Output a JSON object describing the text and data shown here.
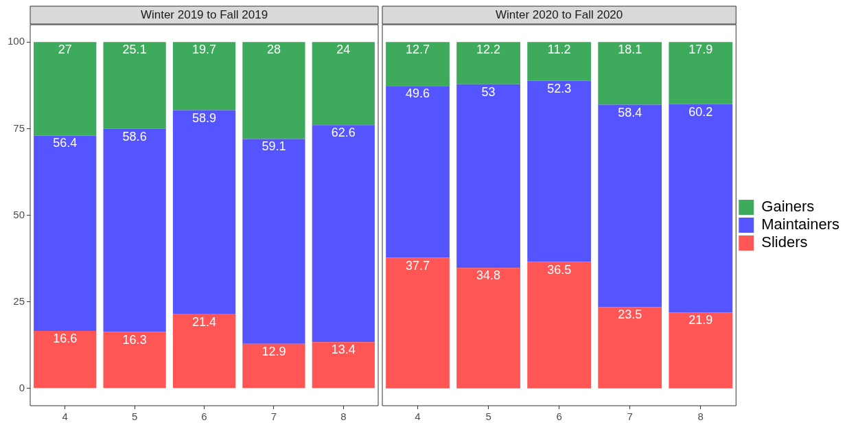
{
  "chart_data": [
    {
      "type": "bar",
      "title": "Winter 2019 to Fall 2019",
      "stacked": true,
      "categories": [
        "4",
        "5",
        "6",
        "7",
        "8"
      ],
      "series": [
        {
          "color": "#ff5555",
          "values": [
            16.6,
            16.3,
            21.4,
            12.9,
            13.4
          ]
        },
        {
          "color": "#5555ff",
          "values": [
            56.4,
            58.6,
            58.9,
            59.1,
            62.6
          ]
        },
        {
          "color": "#3daa5c",
          "values": [
            27,
            25.1,
            19.7,
            28,
            24
          ]
        }
      ],
      "ylim": [
        -5,
        105
      ],
      "yticks": [
        0,
        25,
        50,
        75,
        100
      ],
      "data_labels": true,
      "grid": false,
      "legend": false
    },
    {
      "type": "bar",
      "title": "Winter 2020 to Fall 2020",
      "stacked": true,
      "categories": [
        "4",
        "5",
        "6",
        "7",
        "8"
      ],
      "series": [
        {
          "name": "Sliders",
          "color": "#ff5555",
          "values": [
            37.7,
            34.8,
            36.5,
            23.5,
            21.9
          ]
        },
        {
          "name": "Maintainers",
          "color": "#5555ff",
          "values": [
            49.6,
            53,
            52.3,
            58.4,
            60.2
          ]
        },
        {
          "name": "Gainers",
          "color": "#3daa5c",
          "values": [
            12.7,
            12.2,
            11.2,
            18.1,
            17.9
          ]
        }
      ],
      "ylim": [
        -5,
        105
      ],
      "yticks": [
        0,
        25,
        50,
        75,
        100
      ],
      "tick_labels": "x",
      "data_labels": true,
      "grid": false,
      "legend": "right"
    }
  ]
}
